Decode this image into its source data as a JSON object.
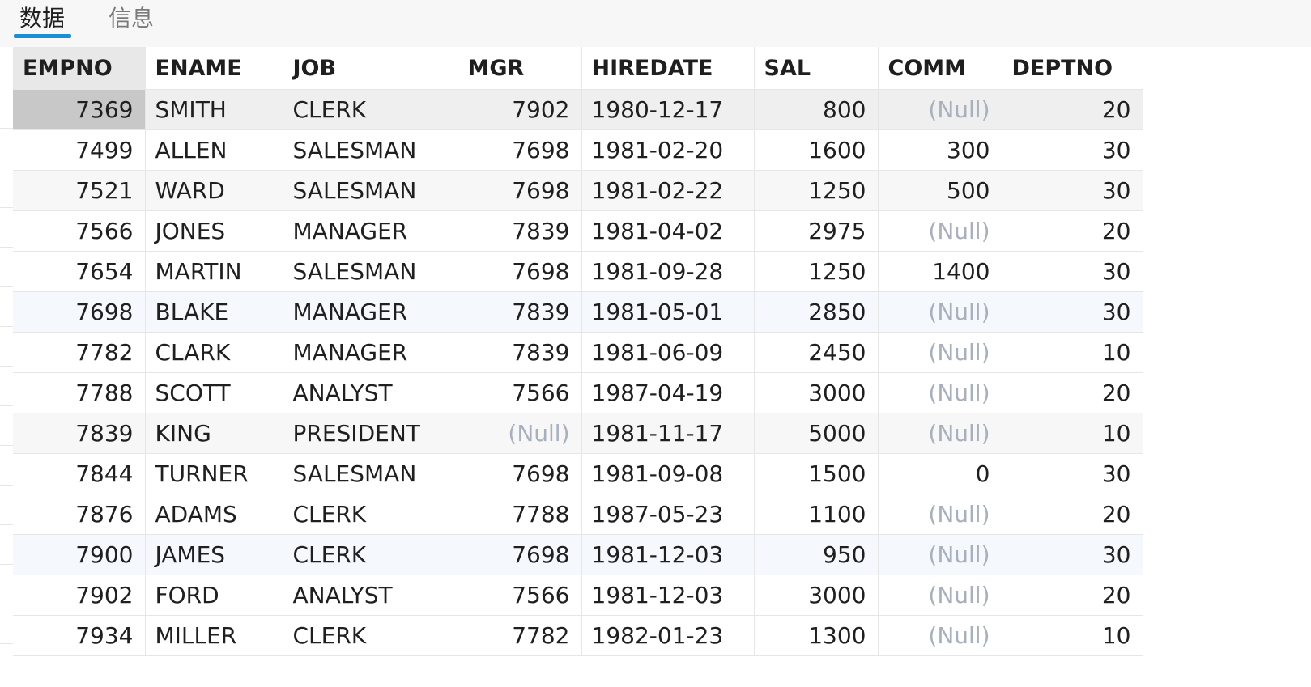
{
  "tabs": [
    {
      "label": "数据",
      "active": true
    },
    {
      "label": "信息",
      "active": false
    }
  ],
  "columns": [
    "EMPNO",
    "ENAME",
    "JOB",
    "MGR",
    "HIREDATE",
    "SAL",
    "COMM",
    "DEPTNO"
  ],
  "rows": [
    [
      "7369",
      "SMITH",
      "CLERK",
      "7902",
      "1980-12-17",
      "800",
      "(Null)",
      "20"
    ],
    [
      "7499",
      "ALLEN",
      "SALESMAN",
      "7698",
      "1981-02-20",
      "1600",
      "300",
      "30"
    ],
    [
      "7521",
      "WARD",
      "SALESMAN",
      "7698",
      "1981-02-22",
      "1250",
      "500",
      "30"
    ],
    [
      "7566",
      "JONES",
      "MANAGER",
      "7839",
      "1981-04-02",
      "2975",
      "(Null)",
      "20"
    ],
    [
      "7654",
      "MARTIN",
      "SALESMAN",
      "7698",
      "1981-09-28",
      "1250",
      "1400",
      "30"
    ],
    [
      "7698",
      "BLAKE",
      "MANAGER",
      "7839",
      "1981-05-01",
      "2850",
      "(Null)",
      "30"
    ],
    [
      "7782",
      "CLARK",
      "MANAGER",
      "7839",
      "1981-06-09",
      "2450",
      "(Null)",
      "10"
    ],
    [
      "7788",
      "SCOTT",
      "ANALYST",
      "7566",
      "1987-04-19",
      "3000",
      "(Null)",
      "20"
    ],
    [
      "7839",
      "KING",
      "PRESIDENT",
      "(Null)",
      "1981-11-17",
      "5000",
      "(Null)",
      "10"
    ],
    [
      "7844",
      "TURNER",
      "SALESMAN",
      "7698",
      "1981-09-08",
      "1500",
      "0",
      "30"
    ],
    [
      "7876",
      "ADAMS",
      "CLERK",
      "7788",
      "1987-05-23",
      "1100",
      "(Null)",
      "20"
    ],
    [
      "7900",
      "JAMES",
      "CLERK",
      "7698",
      "1981-12-03",
      "950",
      "(Null)",
      "30"
    ],
    [
      "7902",
      "FORD",
      "ANALYST",
      "7566",
      "1981-12-03",
      "3000",
      "(Null)",
      "20"
    ],
    [
      "7934",
      "MILLER",
      "CLERK",
      "7782",
      "1982-01-23",
      "1300",
      "(Null)",
      "10"
    ]
  ],
  "colors": {
    "accent": "#1a8fd6",
    "null_text": "#a9b0bd",
    "selected_row": "#efefef",
    "selected_cell": "#c8c8c8"
  }
}
